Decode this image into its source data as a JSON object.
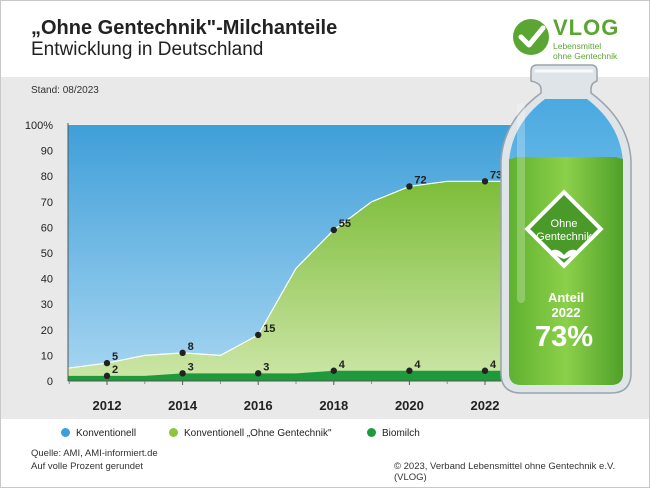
{
  "header": {
    "title": "„Ohne Gentechnik\"-Milchanteile",
    "subtitle": "Entwicklung in Deutschland",
    "logo_word": "VLOG",
    "logo_line1": "Lebensmittel",
    "logo_line2": "ohne Gentechnik"
  },
  "stand": "Stand: 08/2023",
  "bottle": {
    "badge_line1": "Ohne",
    "badge_line2": "Gentechnik",
    "label": "Anteil",
    "year": "2022",
    "share": "73%"
  },
  "legend": {
    "konventionell": "Konventionell",
    "ogt": "Konventionell „Ohne Gentechnik\"",
    "bio": "Biomilch"
  },
  "footer": {
    "source": "Quelle: AMI, AMI-informiert.de",
    "rounding": "Auf volle Prozent gerundet",
    "copyright": "© 2023, Verband Lebensmittel ohne Gentechnik e.V. (VLOG)"
  },
  "colors": {
    "konventionell": "#3aa0dc",
    "ogt": "#8cc63f",
    "bio": "#1e9a3c",
    "brand": "#5ba533"
  },
  "chart_data": {
    "type": "area",
    "ylim": [
      0,
      100
    ],
    "yticks": [
      "0",
      "10",
      "20",
      "30",
      "40",
      "50",
      "60",
      "70",
      "80",
      "90",
      "100%"
    ],
    "xticks": [
      "2012",
      "2014",
      "2016",
      "2018",
      "2020",
      "2022"
    ],
    "x": [
      2011,
      2012,
      2013,
      2014,
      2015,
      2016,
      2017,
      2018,
      2019,
      2020,
      2021,
      2022
    ],
    "series": [
      {
        "name": "Biomilch",
        "values": [
          2,
          2,
          2,
          3,
          3,
          3,
          3,
          4,
          4,
          4,
          4,
          4
        ]
      },
      {
        "name": "Konventionell „Ohne Gentechnik\"",
        "values": [
          5,
          7,
          10,
          11,
          10,
          18,
          44,
          59,
          70,
          76,
          78,
          78
        ]
      },
      {
        "name": "Konventionell",
        "values": [
          100,
          100,
          100,
          100,
          100,
          100,
          100,
          100,
          100,
          100,
          100,
          100
        ]
      }
    ],
    "labels_ogt": [
      {
        "x": 2012,
        "label": "5"
      },
      {
        "x": 2014,
        "label": "8"
      },
      {
        "x": 2016,
        "label": "15"
      },
      {
        "x": 2018,
        "label": "55"
      },
      {
        "x": 2020,
        "label": "72"
      },
      {
        "x": 2022,
        "label": "73"
      }
    ],
    "labels_bio": [
      {
        "x": 2012,
        "label": "2"
      },
      {
        "x": 2014,
        "label": "3"
      },
      {
        "x": 2016,
        "label": "3"
      },
      {
        "x": 2018,
        "label": "4"
      },
      {
        "x": 2020,
        "label": "4"
      },
      {
        "x": 2022,
        "label": "4"
      }
    ]
  }
}
